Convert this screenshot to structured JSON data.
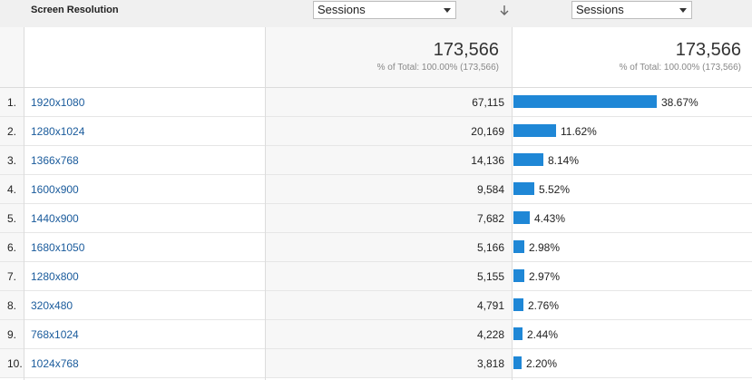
{
  "header": {
    "dimension_title": "Screen Resolution",
    "primary_metric": "Sessions",
    "secondary_metric": "Sessions"
  },
  "totals": {
    "sessions_value": "173,566",
    "sessions_sub": "% of Total: 100.00% (173,566)",
    "pct_value": "173,566",
    "pct_sub": "% of Total: 100.00% (173,566)"
  },
  "rows": [
    {
      "idx": "1.",
      "label": "1920x1080",
      "sessions": "67,115",
      "pct": "38.67%",
      "share": 38.67
    },
    {
      "idx": "2.",
      "label": "1280x1024",
      "sessions": "20,169",
      "pct": "11.62%",
      "share": 11.62
    },
    {
      "idx": "3.",
      "label": "1366x768",
      "sessions": "14,136",
      "pct": "8.14%",
      "share": 8.14
    },
    {
      "idx": "4.",
      "label": "1600x900",
      "sessions": "9,584",
      "pct": "5.52%",
      "share": 5.52
    },
    {
      "idx": "5.",
      "label": "1440x900",
      "sessions": "7,682",
      "pct": "4.43%",
      "share": 4.43
    },
    {
      "idx": "6.",
      "label": "1680x1050",
      "sessions": "5,166",
      "pct": "2.98%",
      "share": 2.98
    },
    {
      "idx": "7.",
      "label": "1280x800",
      "sessions": "5,155",
      "pct": "2.97%",
      "share": 2.97
    },
    {
      "idx": "8.",
      "label": "320x480",
      "sessions": "4,791",
      "pct": "2.76%",
      "share": 2.76
    },
    {
      "idx": "9.",
      "label": "768x1024",
      "sessions": "4,228",
      "pct": "2.44%",
      "share": 2.44
    },
    {
      "idx": "10.",
      "label": "1024x768",
      "sessions": "3,818",
      "pct": "2.20%",
      "share": 2.2
    }
  ],
  "colors": {
    "bar": "#1f87d6",
    "link": "#1a5b9c"
  },
  "icons": {
    "sort": "arrow-down-icon",
    "dropdown": "chevron-down-icon"
  }
}
